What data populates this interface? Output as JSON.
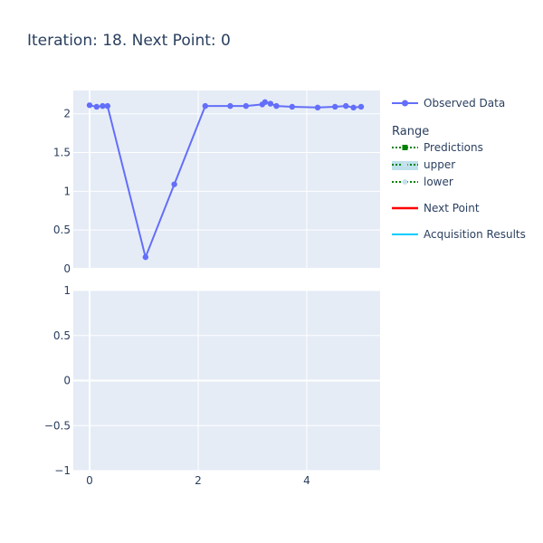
{
  "title": "Iteration: 18. Next Point: 0",
  "colors": {
    "plot_bg": "#e5ecf6",
    "grid": "#ffffff",
    "observed": "#636efa",
    "predictions": "#008000",
    "range_fill": "#add8e6",
    "next_point": "#ff0000",
    "acquisition": "#00ccff"
  },
  "legend": {
    "observed": "Observed Data",
    "group_title": "Range",
    "predictions": "Predictions",
    "upper": "upper",
    "lower": "lower",
    "next_point": "Next Point",
    "acquisition": "Acquisition Results"
  },
  "chart_data": [
    {
      "type": "line",
      "series": [
        {
          "name": "Observed Data",
          "x": [
            0.0,
            0.13,
            0.24,
            0.33,
            1.03,
            1.56,
            2.13,
            2.59,
            2.88,
            3.18,
            3.23,
            3.33,
            3.44,
            3.73,
            4.2,
            4.52,
            4.72,
            4.86,
            5.0
          ],
          "y": [
            2.11,
            2.09,
            2.1,
            2.1,
            0.15,
            1.09,
            2.1,
            2.1,
            2.1,
            2.12,
            2.15,
            2.13,
            2.1,
            2.09,
            2.08,
            2.09,
            2.1,
            2.08,
            2.09
          ]
        }
      ],
      "xlim": [
        -0.3,
        5.35
      ],
      "ylim": [
        0,
        2.3
      ],
      "yticks": [
        {
          "v": 0,
          "label": "0"
        },
        {
          "v": 0.5,
          "label": "0.5"
        },
        {
          "v": 1,
          "label": "1"
        },
        {
          "v": 1.5,
          "label": "1.5"
        },
        {
          "v": 2,
          "label": "2"
        }
      ],
      "grid": true
    },
    {
      "type": "line",
      "series": [],
      "xlim": [
        -0.3,
        5.35
      ],
      "ylim": [
        -1,
        1
      ],
      "xticks": [
        {
          "v": 0,
          "label": "0"
        },
        {
          "v": 2,
          "label": "2"
        },
        {
          "v": 4,
          "label": "4"
        }
      ],
      "yticks": [
        {
          "v": -1,
          "label": "−1"
        },
        {
          "v": -0.5,
          "label": "−0.5"
        },
        {
          "v": 0,
          "label": "0"
        },
        {
          "v": 0.5,
          "label": "0.5"
        },
        {
          "v": 1,
          "label": "1"
        }
      ],
      "grid": true
    }
  ]
}
